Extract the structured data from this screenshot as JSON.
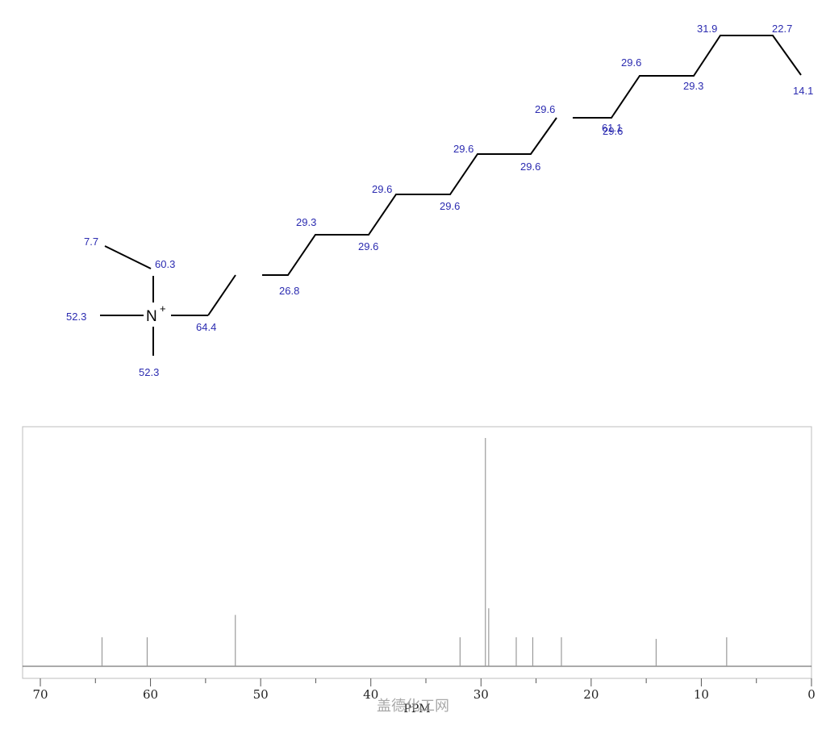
{
  "structure": {
    "atom_symbol": "N",
    "charge": "+",
    "shift_labels": {
      "ethyl_ch3": "7.7",
      "ethyl_ch2": "60.3",
      "methyl_left": "52.3",
      "methyl_bottom": "52.3",
      "c1": "64.4",
      "c2": "26.8",
      "c3": "29.3",
      "c4": "29.6",
      "c5": "29.6",
      "c6": "29.6",
      "c7": "29.6",
      "c8": "29.6",
      "c9": "29.6",
      "c10": "29.6",
      "c11": "29.6",
      "c12": "29.6",
      "c13": "29.3",
      "c14": "31.9",
      "c15": "22.7",
      "c16": "14.1",
      "overlap": "61.1"
    }
  },
  "chart_data": {
    "type": "bar",
    "title": "",
    "xlabel": "PPM",
    "ylabel": "",
    "xlim": [
      70,
      0
    ],
    "x_reversed": true,
    "grid": false,
    "x_ticks": [
      70,
      60,
      50,
      40,
      30,
      20,
      10,
      0
    ],
    "peaks": [
      {
        "ppm": 64.4,
        "intensity": 0.127
      },
      {
        "ppm": 60.3,
        "intensity": 0.127
      },
      {
        "ppm": 52.3,
        "intensity": 0.225
      },
      {
        "ppm": 31.9,
        "intensity": 0.127
      },
      {
        "ppm": 29.6,
        "intensity": 1.0
      },
      {
        "ppm": 29.3,
        "intensity": 0.254
      },
      {
        "ppm": 26.8,
        "intensity": 0.127
      },
      {
        "ppm": 25.3,
        "intensity": 0.127
      },
      {
        "ppm": 22.7,
        "intensity": 0.127
      },
      {
        "ppm": 14.1,
        "intensity": 0.12
      },
      {
        "ppm": 7.7,
        "intensity": 0.127
      }
    ]
  },
  "watermark": "盖德化工网"
}
